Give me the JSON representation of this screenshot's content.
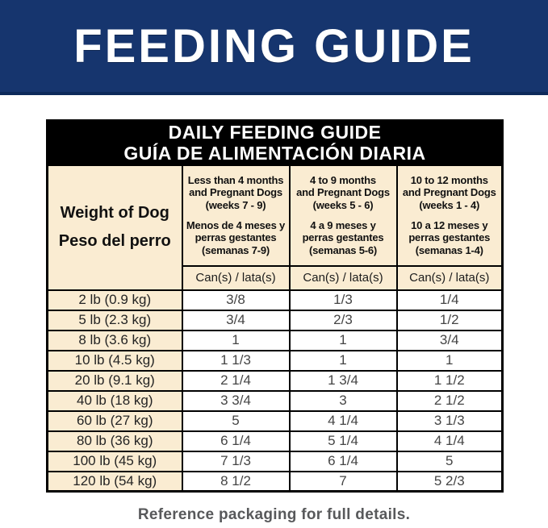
{
  "colors": {
    "banner_bg": "#16356e",
    "banner_edge": "#0d2a5a",
    "table_title_bg": "#000000",
    "cream": "#faecd2",
    "number_text": "#454545",
    "footer_text": "#58595b"
  },
  "banner": {
    "title": "FEEDING GUIDE"
  },
  "table": {
    "title_en": "DAILY FEEDING GUIDE",
    "title_es": "GUÍA DE ALIMENTACIÓN DIARIA",
    "weight_header_en": "Weight of Dog",
    "weight_header_es": "Peso del perro",
    "unit_label": "Can(s) / lata(s)",
    "columns": [
      {
        "en": "Less than 4 months\nand Pregnant Dogs\n(weeks 7 - 9)",
        "es": "Menos de 4 meses y\nperras gestantes\n(semanas 7-9)"
      },
      {
        "en": "4 to 9 months\nand Pregnant Dogs\n(weeks 5 - 6)",
        "es": "4 a 9 meses y\nperras gestantes\n(semanas 5-6)"
      },
      {
        "en": "10 to 12 months\nand Pregnant Dogs\n(weeks 1 - 4)",
        "es": "10 a 12 meses y\nperras gestantes\n(semanas 1-4)"
      }
    ],
    "rows": [
      {
        "weight": "2 lb (0.9 kg)",
        "values": [
          "3/8",
          "1/3",
          "1/4"
        ]
      },
      {
        "weight": "5 lb (2.3 kg)",
        "values": [
          "3/4",
          "2/3",
          "1/2"
        ]
      },
      {
        "weight": "8 lb (3.6 kg)",
        "values": [
          "1",
          "1",
          "3/4"
        ]
      },
      {
        "weight": "10 lb (4.5 kg)",
        "values": [
          "1 1/3",
          "1",
          "1"
        ]
      },
      {
        "weight": "20 lb (9.1 kg)",
        "values": [
          "2 1/4",
          "1 3/4",
          "1 1/2"
        ]
      },
      {
        "weight": "40 lb (18 kg)",
        "values": [
          "3 3/4",
          "3",
          "2 1/2"
        ]
      },
      {
        "weight": "60 lb (27 kg)",
        "values": [
          "5",
          "4 1/4",
          "3 1/3"
        ]
      },
      {
        "weight": "80 lb (36 kg)",
        "values": [
          "6 1/4",
          "5 1/4",
          "4 1/4"
        ]
      },
      {
        "weight": "100 lb (45 kg)",
        "values": [
          "7 1/3",
          "6 1/4",
          "5"
        ]
      },
      {
        "weight": "120 lb (54 kg)",
        "values": [
          "8 1/2",
          "7",
          "5 2/3"
        ]
      }
    ]
  },
  "footer": {
    "note": "Reference packaging for full details."
  },
  "chart_data": {
    "type": "table",
    "title": "DAILY FEEDING GUIDE / GUÍA DE ALIMENTACIÓN DIARIA",
    "unit": "Can(s) / lata(s)",
    "columns": [
      "Weight of Dog / Peso del perro",
      "Less than 4 months and Pregnant Dogs (weeks 7 - 9) / Menos de 4 meses y perras gestantes (semanas 7-9)",
      "4 to 9 months and Pregnant Dogs (weeks 5 - 6) / 4 a 9 meses y perras gestantes (semanas 5-6)",
      "10 to 12 months and Pregnant Dogs (weeks 1 - 4) / 10 a 12 meses y perras gestantes (semanas 1-4)"
    ],
    "rows": [
      [
        "2 lb (0.9 kg)",
        "3/8",
        "1/3",
        "1/4"
      ],
      [
        "5 lb (2.3 kg)",
        "3/4",
        "2/3",
        "1/2"
      ],
      [
        "8 lb (3.6 kg)",
        "1",
        "1",
        "3/4"
      ],
      [
        "10 lb (4.5 kg)",
        "1 1/3",
        "1",
        "1"
      ],
      [
        "20 lb (9.1 kg)",
        "2 1/4",
        "1 3/4",
        "1 1/2"
      ],
      [
        "40 lb (18 kg)",
        "3 3/4",
        "3",
        "2 1/2"
      ],
      [
        "60 lb (27 kg)",
        "5",
        "4 1/4",
        "3 1/3"
      ],
      [
        "80 lb (36 kg)",
        "6 1/4",
        "5 1/4",
        "4 1/4"
      ],
      [
        "100 lb (45 kg)",
        "7 1/3",
        "6 1/4",
        "5"
      ],
      [
        "120 lb (54 kg)",
        "8 1/2",
        "7",
        "5 2/3"
      ]
    ]
  }
}
